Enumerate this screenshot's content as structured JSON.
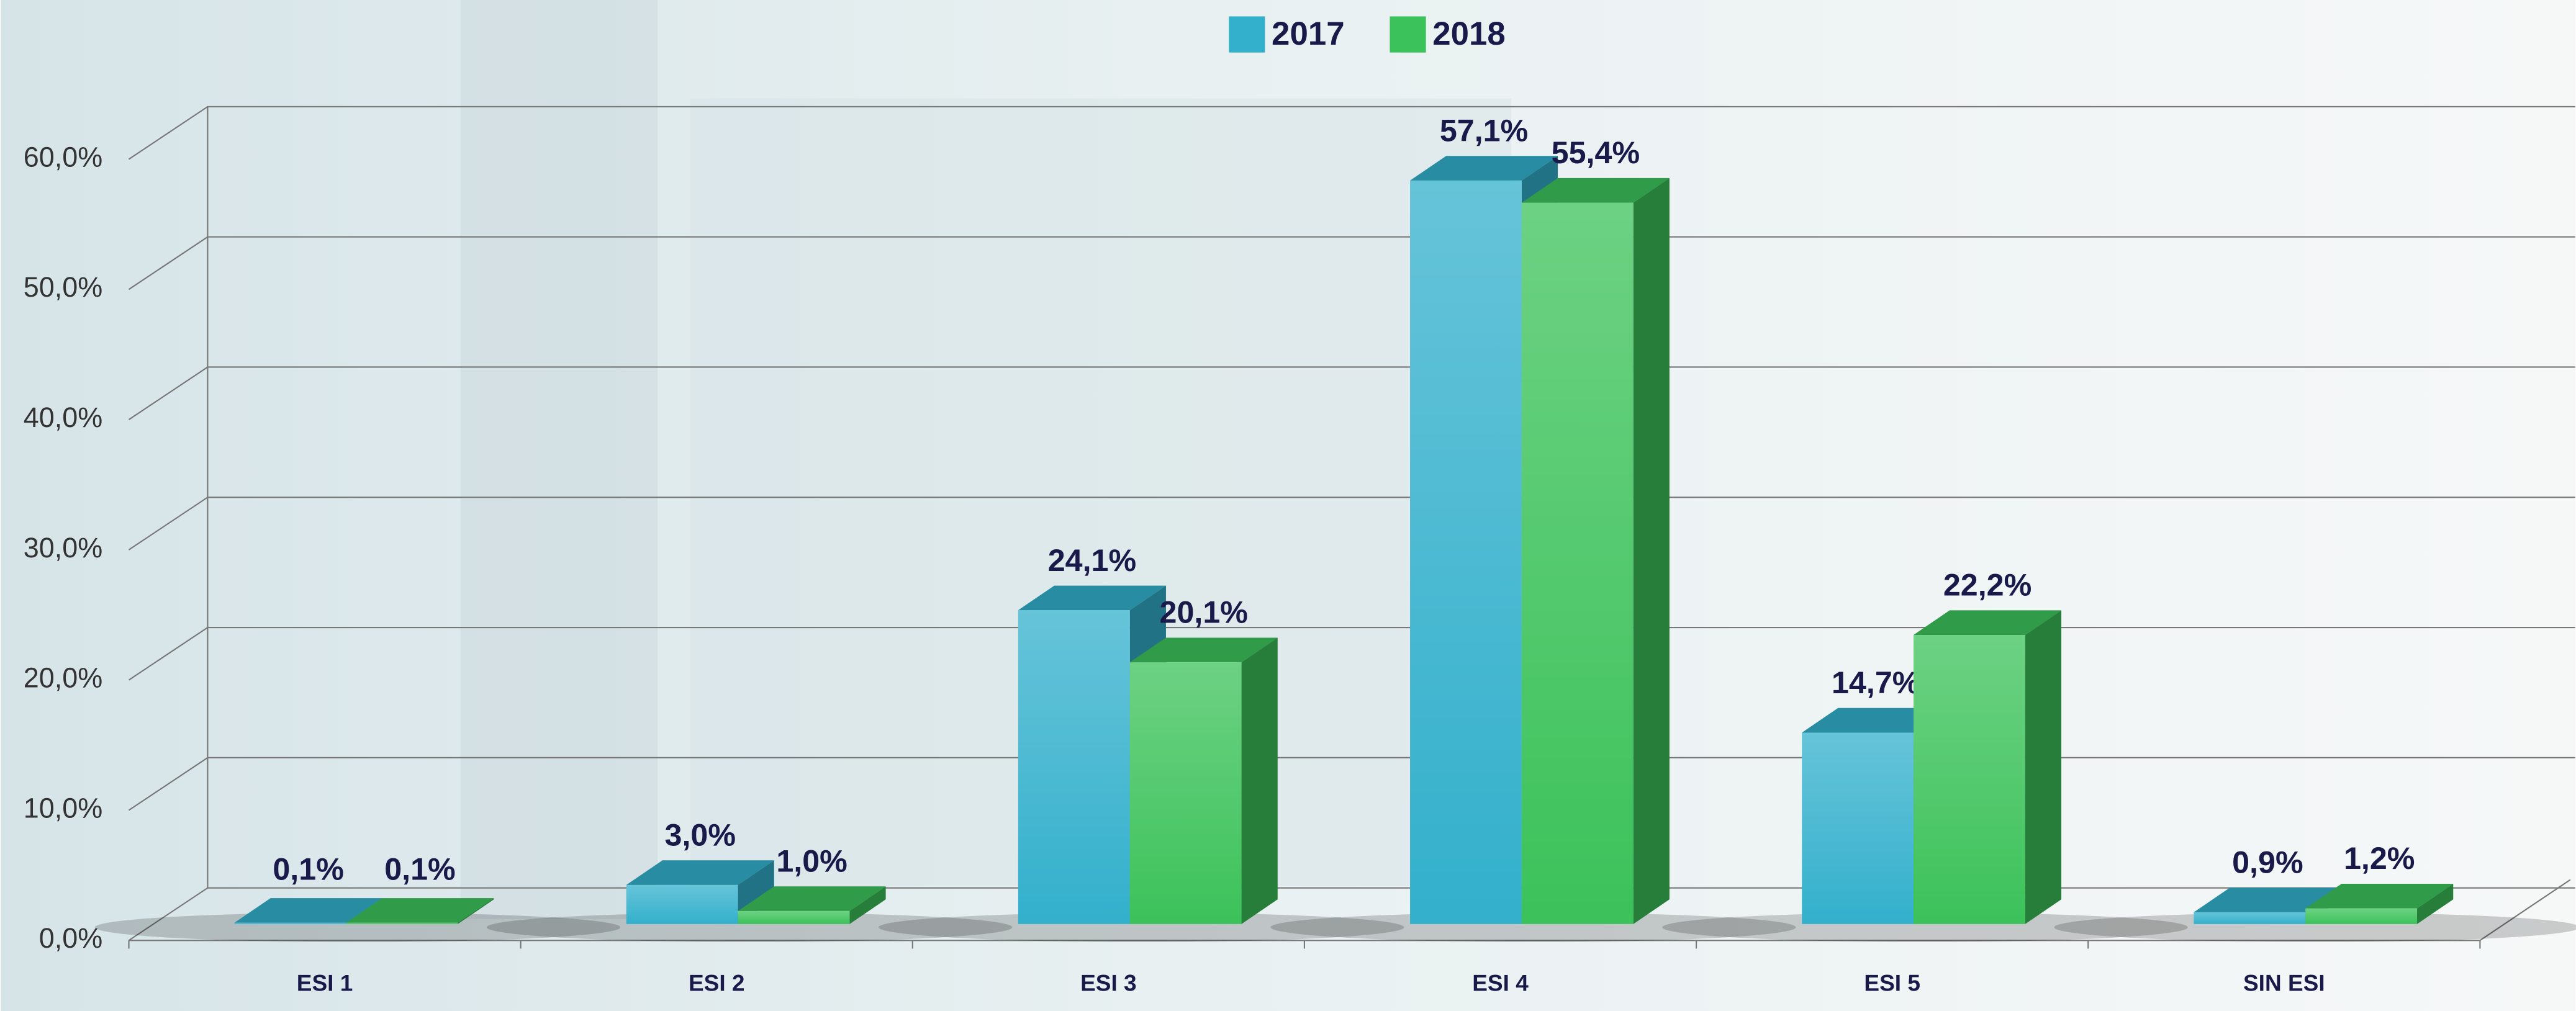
{
  "chart_data": {
    "type": "bar",
    "categories": [
      "ESI 1",
      "ESI 2",
      "ESI 3",
      "ESI 4",
      "ESI 5",
      "SIN ESI"
    ],
    "series": [
      {
        "name": "2017",
        "color": "#33b0cc",
        "values": [
          0.1,
          3.0,
          24.1,
          57.1,
          14.7,
          0.9
        ],
        "value_labels": [
          "0,1%",
          "3,0%",
          "24,1%",
          "57,1%",
          "14,7%",
          "0,9%"
        ]
      },
      {
        "name": "2018",
        "color": "#3cc25a",
        "values": [
          0.1,
          1.0,
          20.1,
          55.4,
          22.2,
          1.2
        ],
        "value_labels": [
          "0,1%",
          "1,0%",
          "20,1%",
          "55,4%",
          "22,2%",
          "1,2%"
        ]
      }
    ],
    "ylim": [
      0,
      60
    ],
    "yticks": [
      {
        "value": 0,
        "label": "0,0%"
      },
      {
        "value": 10,
        "label": "10,0%"
      },
      {
        "value": 20,
        "label": "20,0%"
      },
      {
        "value": 30,
        "label": "30,0%"
      },
      {
        "value": 40,
        "label": "40,0%"
      },
      {
        "value": 50,
        "label": "50,0%"
      },
      {
        "value": 60,
        "label": "60,0%"
      }
    ],
    "grid": true,
    "legend": "top"
  }
}
